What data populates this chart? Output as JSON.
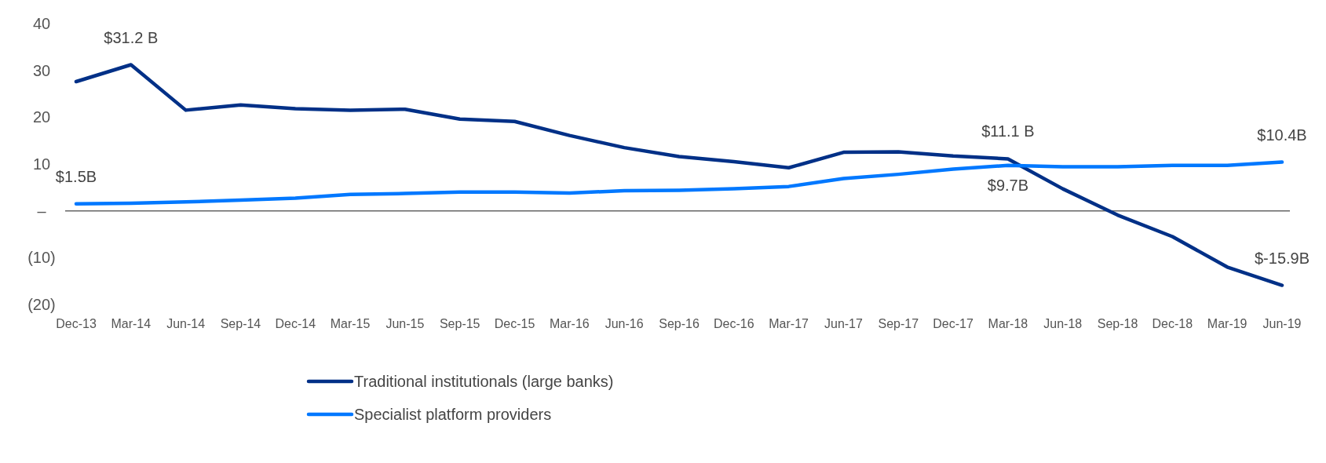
{
  "chart_data": {
    "type": "line",
    "categories": [
      "Dec-13",
      "Mar-14",
      "Jun-14",
      "Sep-14",
      "Dec-14",
      "Mar-15",
      "Jun-15",
      "Sep-15",
      "Dec-15",
      "Mar-16",
      "Jun-16",
      "Sep-16",
      "Dec-16",
      "Mar-17",
      "Jun-17",
      "Sep-17",
      "Dec-17",
      "Mar-18",
      "Jun-18",
      "Sep-18",
      "Dec-18",
      "Mar-19",
      "Jun-19"
    ],
    "series": [
      {
        "name": "Traditional institutionals (large banks)",
        "color": "#003087",
        "values": [
          27.6,
          31.2,
          21.5,
          22.6,
          21.8,
          21.5,
          21.7,
          19.6,
          19.1,
          16.1,
          13.5,
          11.6,
          10.5,
          9.2,
          12.5,
          12.6,
          11.7,
          11.1,
          4.7,
          -0.9,
          -5.5,
          -12.0,
          -15.9
        ]
      },
      {
        "name": "Specialist platform providers",
        "color": "#0078ff",
        "values": [
          1.5,
          1.6,
          1.9,
          2.3,
          2.7,
          3.5,
          3.7,
          4.0,
          4.0,
          3.8,
          4.3,
          4.4,
          4.7,
          5.2,
          6.9,
          7.8,
          8.9,
          9.7,
          9.4,
          9.4,
          9.7,
          9.7,
          10.4
        ]
      }
    ],
    "ylim": [
      -20,
      40
    ],
    "yticks": [
      {
        "value": -20,
        "label": "(20)"
      },
      {
        "value": -10,
        "label": "(10)"
      },
      {
        "value": 0,
        "label": "–"
      },
      10,
      20,
      30,
      40
    ],
    "ref_lines": [
      {
        "axis": "y",
        "value": 0,
        "color": "#666666"
      }
    ],
    "annotations": [
      {
        "text": "$31.2 B",
        "x": "Mar-14",
        "y": 31.2
      },
      {
        "text": "$1.5B",
        "x": "Dec-13",
        "y": 1.5
      },
      {
        "text": "$11.1 B",
        "x": "Mar-18",
        "y": 11.1
      },
      {
        "text": "$9.7B",
        "x": "Mar-18",
        "y": 9.7
      },
      {
        "text": "$10.4B",
        "x": "Jun-19",
        "y": 10.4
      },
      {
        "text": "$-15.9B",
        "x": "Jun-19",
        "y": -15.9
      }
    ],
    "grid": false,
    "legend": "bottom",
    "line_style": "solid",
    "marker": "none"
  }
}
